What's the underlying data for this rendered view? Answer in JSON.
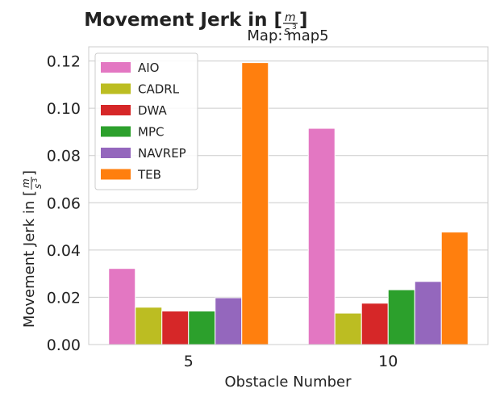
{
  "chart_data": {
    "type": "bar",
    "title": "Movement Jerk in [",
    "title_unit_num": "m",
    "title_unit_den": "s",
    "title_unit_exp": "3",
    "title_close": "]",
    "subtitle": "Map: map5",
    "xlabel": "Obstacle Number",
    "ylabel": "Movement Jerk in [",
    "ylabel_unit_num": "m",
    "ylabel_unit_den": "s",
    "ylabel_unit_exp": "3",
    "ylabel_close": "]",
    "categories": [
      "5",
      "10"
    ],
    "ylim": [
      0,
      0.126
    ],
    "yticks": [
      "0.00",
      "0.02",
      "0.04",
      "0.06",
      "0.08",
      "0.10",
      "0.12"
    ],
    "grid": true,
    "legend_position": "top-left",
    "series": [
      {
        "name": "AIO",
        "color": "#e377c2",
        "values": [
          0.0322,
          0.0915
        ]
      },
      {
        "name": "CADRL",
        "color": "#bcbd22",
        "values": [
          0.0158,
          0.0133
        ]
      },
      {
        "name": "DWA",
        "color": "#d62728",
        "values": [
          0.0142,
          0.0175
        ]
      },
      {
        "name": "MPC",
        "color": "#2ca02c",
        "values": [
          0.0142,
          0.0232
        ]
      },
      {
        "name": "NAVREP",
        "color": "#9467bd",
        "values": [
          0.0198,
          0.0267
        ]
      },
      {
        "name": "TEB",
        "color": "#ff7f0e",
        "values": [
          0.1193,
          0.0476
        ]
      }
    ]
  }
}
